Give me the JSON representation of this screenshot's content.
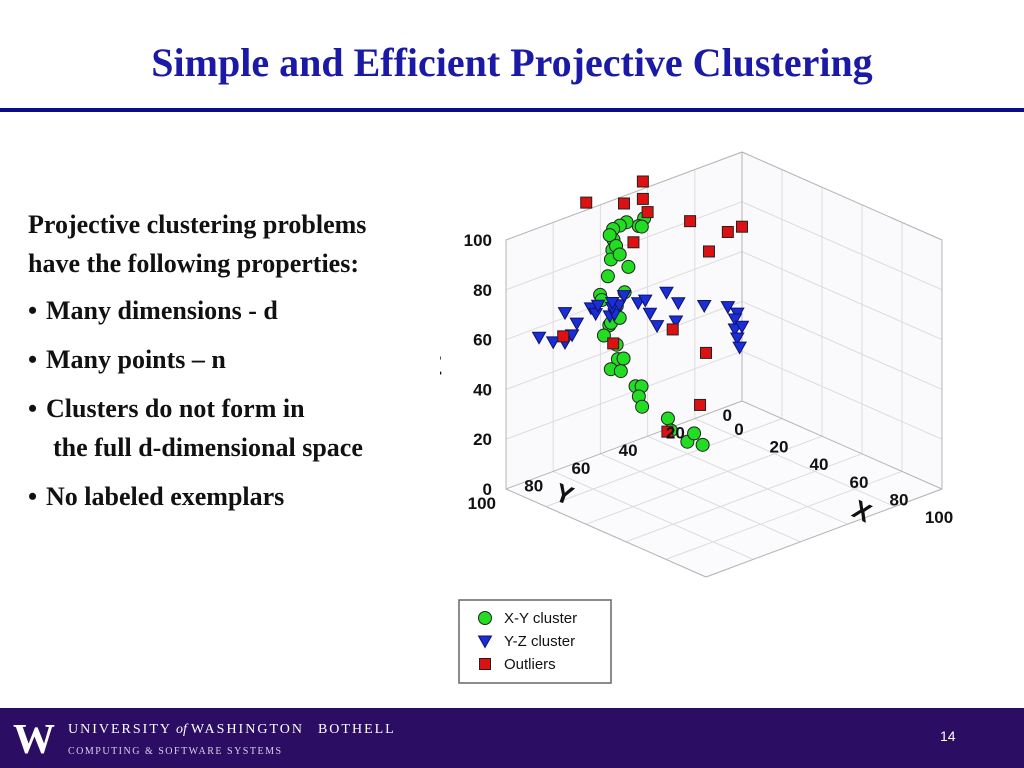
{
  "slide": {
    "title": "Simple and Efficient Projective Clustering",
    "intro": "Projective clustering problems have the following properties:",
    "bullets": [
      {
        "text": "Many dimensions - d"
      },
      {
        "text": "Many points – n"
      },
      {
        "text": "Clusters do not form in",
        "continuation": "the full d-dimensional space"
      },
      {
        "text": "No labeled exemplars"
      }
    ],
    "bullet_symbol": "•"
  },
  "footer": {
    "university": "UNIVERSITY",
    "of": "of",
    "washington": "WASHINGTON",
    "campus": "BOTHELL",
    "department": "COMPUTING & SOFTWARE SYSTEMS",
    "logo_letter": "W",
    "page_number": "14",
    "background_color": "#2b0d63"
  },
  "chart_data": {
    "type": "scatter",
    "projection": "3d",
    "title": "",
    "axes": {
      "x": {
        "label": "X",
        "range": [
          0,
          100
        ],
        "ticks": [
          "0",
          "20",
          "40",
          "60",
          "80",
          "100"
        ]
      },
      "y": {
        "label": "Y",
        "range": [
          0,
          100
        ],
        "ticks": [
          "0",
          "20",
          "40",
          "60",
          "80",
          "100"
        ]
      },
      "z": {
        "label": "Z",
        "range": [
          0,
          100
        ],
        "ticks": [
          "0",
          "20",
          "40",
          "60",
          "80",
          "100"
        ]
      }
    },
    "grid": true,
    "legend_position": "bottom-left",
    "series": [
      {
        "name": "X-Y cluster",
        "marker": "circle",
        "color": "#22dd22",
        "points": [
          [
            3,
            44,
            90
          ],
          [
            5,
            48,
            89
          ],
          [
            3,
            45,
            87
          ],
          [
            6,
            54,
            93
          ],
          [
            5,
            56,
            92
          ],
          [
            4,
            58,
            91
          ],
          [
            3,
            57,
            86
          ],
          [
            6,
            60,
            84
          ],
          [
            7,
            62,
            91
          ],
          [
            9,
            61,
            87
          ],
          [
            10,
            64,
            83
          ],
          [
            12,
            62,
            85
          ],
          [
            14,
            60,
            80
          ],
          [
            12,
            67,
            78
          ],
          [
            18,
            65,
            73
          ],
          [
            14,
            72,
            73
          ],
          [
            16,
            73,
            72
          ],
          [
            20,
            70,
            70
          ],
          [
            21,
            74,
            64
          ],
          [
            23,
            75,
            66
          ],
          [
            25,
            73,
            68
          ],
          [
            23,
            78,
            62
          ],
          [
            27,
            76,
            59
          ],
          [
            30,
            78,
            55
          ],
          [
            30,
            81,
            52
          ],
          [
            34,
            79,
            57
          ],
          [
            35,
            81,
            53
          ],
          [
            40,
            79,
            48
          ],
          [
            43,
            79,
            49
          ],
          [
            44,
            81,
            46
          ],
          [
            48,
            83,
            44
          ],
          [
            55,
            78,
            40
          ],
          [
            60,
            81,
            38
          ],
          [
            60,
            74,
            31
          ],
          [
            61,
            72,
            34
          ],
          [
            70,
            76,
            34
          ]
        ]
      },
      {
        "name": "Y-Z cluster",
        "marker": "triangle-down",
        "color": "#1a2ed6",
        "points": [
          [
            0,
            75,
            62
          ],
          [
            0,
            80,
            52
          ],
          [
            0,
            75,
            50
          ],
          [
            0,
            72,
            52
          ],
          [
            0,
            86,
            56
          ],
          [
            0,
            70,
            56
          ],
          [
            0,
            64,
            60
          ],
          [
            0,
            62,
            57
          ],
          [
            0,
            61,
            60
          ],
          [
            0,
            56,
            54
          ],
          [
            0,
            54,
            54
          ],
          [
            0,
            55,
            57
          ],
          [
            0,
            52,
            57
          ],
          [
            0,
            55,
            59
          ],
          [
            0,
            50,
            60
          ],
          [
            0,
            44,
            55
          ],
          [
            0,
            41,
            55
          ],
          [
            0,
            32,
            55
          ],
          [
            0,
            39,
            49
          ],
          [
            0,
            27,
            49
          ],
          [
            0,
            36,
            43
          ],
          [
            0,
            28,
            42
          ],
          [
            0,
            16,
            44
          ],
          [
            0,
            6,
            40
          ],
          [
            0,
            2,
            36
          ],
          [
            0,
            3,
            34
          ],
          [
            0,
            3,
            30
          ],
          [
            0,
            0,
            30
          ],
          [
            0,
            2,
            26
          ],
          [
            0,
            1,
            22
          ]
        ]
      },
      {
        "name": "Outliers",
        "marker": "square",
        "color": "#dd1111",
        "points": [
          [
            0,
            42,
            103
          ],
          [
            0,
            66,
            103
          ],
          [
            0,
            50,
            97
          ],
          [
            0,
            42,
            96
          ],
          [
            0,
            40,
            90
          ],
          [
            0,
            46,
            80
          ],
          [
            0,
            22,
            80
          ],
          [
            0,
            6,
            70
          ],
          [
            0,
            0,
            70
          ],
          [
            0,
            14,
            65
          ],
          [
            100,
            100,
            90
          ],
          [
            81,
            98,
            92
          ],
          [
            30,
            80,
            62
          ],
          [
            63,
            85,
            40
          ],
          [
            51,
            61,
            38
          ],
          [
            5,
            80,
            56
          ]
        ]
      }
    ]
  }
}
